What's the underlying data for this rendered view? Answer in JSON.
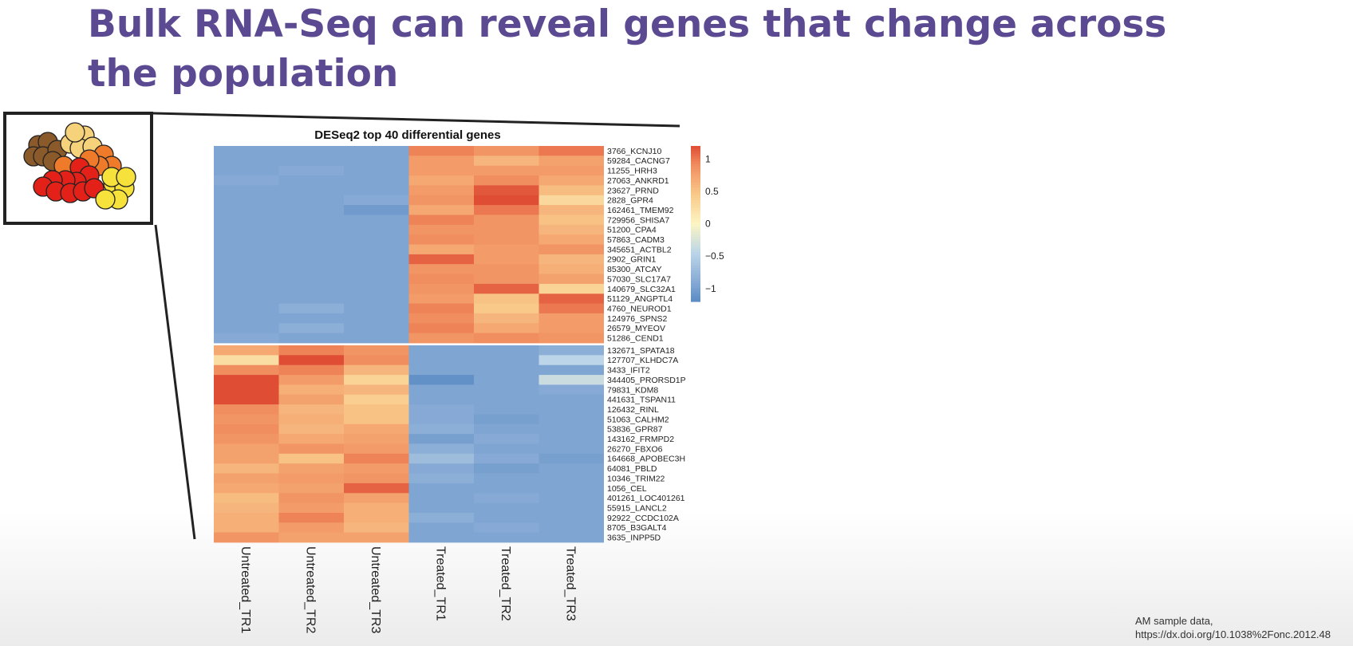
{
  "slide": {
    "title": "Bulk RNA-Seq can reveal genes that change across the population"
  },
  "citation": {
    "line1": "AM sample data,",
    "line2": "https://dx.doi.org/10.1038%2Fonc.2012.48"
  },
  "cluster_icon": {
    "cell_colors": [
      "#8b5a2b",
      "#f6d27a",
      "#ef7b2a",
      "#e32119",
      "#f6e23a"
    ]
  },
  "chart_data": {
    "type": "heatmap",
    "title": "DESeq2 top 40 differential genes",
    "columns": [
      "Untreated_TR1",
      "Untreated_TR2",
      "Untreated_TR3",
      "Treated_TR1",
      "Treated_TR2",
      "Treated_TR3"
    ],
    "rows": [
      "3766_KCNJ10",
      "59284_CACNG7",
      "11255_HRH3",
      "27063_ANKRD1",
      "23627_PRND",
      "2828_GPR4",
      "162461_TMEM92",
      "729956_SHISA7",
      "51200_CPA4",
      "57863_CADM3",
      "345651_ACTBL2",
      "2902_GRIN1",
      "85300_ATCAY",
      "57030_SLC17A7",
      "140679_SLC32A1",
      "51129_ANGPTL4",
      "4760_NEUROD1",
      "124976_SPNS2",
      "26579_MYEOV",
      "51286_CEND1",
      "132671_SPATA18",
      "127707_KLHDC7A",
      "3433_IFIT2",
      "344405_PRORSD1P",
      "79831_KDM8",
      "441631_TSPAN11",
      "126432_RINL",
      "51063_CALHM2",
      "53836_GPR87",
      "143162_FRMPD2",
      "26270_FBXO6",
      "164668_APOBEC3H",
      "64081_PBLD",
      "10346_TRIM22",
      "1056_CEL",
      "401261_LOC401261",
      "55915_LANCL2",
      "92922_CCDC102A",
      "8705_B3GALT4",
      "3635_INPP5D"
    ],
    "values": [
      [
        -0.95,
        -0.95,
        -0.95,
        0.95,
        0.85,
        1.0
      ],
      [
        -0.95,
        -0.95,
        -0.95,
        0.8,
        0.6,
        0.75
      ],
      [
        -0.95,
        -0.9,
        -0.95,
        0.8,
        0.8,
        0.8
      ],
      [
        -0.9,
        -0.95,
        -0.95,
        0.7,
        0.9,
        0.7
      ],
      [
        -0.95,
        -0.95,
        -0.95,
        0.8,
        1.15,
        0.55
      ],
      [
        -0.95,
        -0.95,
        -0.9,
        0.85,
        1.25,
        0.3
      ],
      [
        -0.95,
        -0.95,
        -1.05,
        0.7,
        1.0,
        0.6
      ],
      [
        -0.95,
        -0.95,
        -0.95,
        0.95,
        0.85,
        0.5
      ],
      [
        -0.95,
        -0.95,
        -0.95,
        0.85,
        0.85,
        0.6
      ],
      [
        -0.95,
        -0.95,
        -0.95,
        0.9,
        0.85,
        0.7
      ],
      [
        -0.95,
        -0.95,
        -0.95,
        0.7,
        0.8,
        0.85
      ],
      [
        -0.95,
        -0.95,
        -0.95,
        1.1,
        0.8,
        0.6
      ],
      [
        -0.95,
        -0.95,
        -0.95,
        0.85,
        0.85,
        0.65
      ],
      [
        -0.95,
        -0.95,
        -0.95,
        0.9,
        0.85,
        0.75
      ],
      [
        -0.95,
        -0.95,
        -0.95,
        0.85,
        1.1,
        0.35
      ],
      [
        -0.95,
        -0.95,
        -0.95,
        0.8,
        0.5,
        1.1
      ],
      [
        -0.95,
        -0.85,
        -0.95,
        0.95,
        0.45,
        1.0
      ],
      [
        -0.95,
        -0.95,
        -0.95,
        0.9,
        0.6,
        0.8
      ],
      [
        -0.95,
        -0.85,
        -0.95,
        0.95,
        0.7,
        0.8
      ],
      [
        -0.9,
        -0.95,
        -0.95,
        0.85,
        0.9,
        0.85
      ],
      [
        0.7,
        0.95,
        0.85,
        -0.95,
        -0.95,
        -0.85
      ],
      [
        0.25,
        1.2,
        0.9,
        -0.95,
        -0.95,
        -0.45
      ],
      [
        0.9,
        0.95,
        0.6,
        -0.95,
        -0.95,
        -0.95
      ],
      [
        1.2,
        0.8,
        0.35,
        -1.15,
        -0.95,
        -0.35
      ],
      [
        1.25,
        0.65,
        0.6,
        -0.95,
        -0.95,
        -0.9
      ],
      [
        1.2,
        0.75,
        0.4,
        -0.95,
        -0.95,
        -0.95
      ],
      [
        0.9,
        0.6,
        0.5,
        -0.9,
        -0.95,
        -0.95
      ],
      [
        0.85,
        0.65,
        0.5,
        -0.9,
        -1.0,
        -0.95
      ],
      [
        0.9,
        0.6,
        0.7,
        -0.85,
        -0.95,
        -0.95
      ],
      [
        0.85,
        0.7,
        0.75,
        -1.0,
        -0.9,
        -0.95
      ],
      [
        0.75,
        0.85,
        0.8,
        -0.85,
        -0.95,
        -0.95
      ],
      [
        0.75,
        0.5,
        0.95,
        -0.7,
        -0.9,
        -1.0
      ],
      [
        0.6,
        0.75,
        0.8,
        -0.9,
        -1.0,
        -0.95
      ],
      [
        0.75,
        0.8,
        0.85,
        -0.85,
        -0.95,
        -0.95
      ],
      [
        0.7,
        0.75,
        1.1,
        -0.95,
        -0.95,
        -0.95
      ],
      [
        0.55,
        0.85,
        0.75,
        -0.95,
        -0.9,
        -0.95
      ],
      [
        0.6,
        0.8,
        0.65,
        -0.95,
        -0.95,
        -0.95
      ],
      [
        0.65,
        0.95,
        0.65,
        -0.85,
        -0.95,
        -0.95
      ],
      [
        0.65,
        0.8,
        0.6,
        -0.95,
        -0.9,
        -0.95
      ],
      [
        0.85,
        0.75,
        0.75,
        -0.95,
        -0.95,
        -0.95
      ]
    ],
    "color_scale": {
      "min": -1.2,
      "max": 1.2,
      "stops": [
        {
          "value": -1.2,
          "color": "#5b8cc4"
        },
        {
          "value": -0.9,
          "color": "#86aad5"
        },
        {
          "value": -0.45,
          "color": "#bcd5e8"
        },
        {
          "value": 0,
          "color": "#fcf5c3"
        },
        {
          "value": 0.45,
          "color": "#f9c98a"
        },
        {
          "value": 0.9,
          "color": "#f18e5f"
        },
        {
          "value": 1.2,
          "color": "#df4d35"
        }
      ]
    },
    "legend_ticks": [
      {
        "value": 1,
        "label": "1"
      },
      {
        "value": 0.5,
        "label": "0.5"
      },
      {
        "value": 0,
        "label": "0"
      },
      {
        "value": -0.5,
        "label": "−0.5"
      },
      {
        "value": -1,
        "label": "−1"
      }
    ],
    "row_gap_after": 20
  }
}
